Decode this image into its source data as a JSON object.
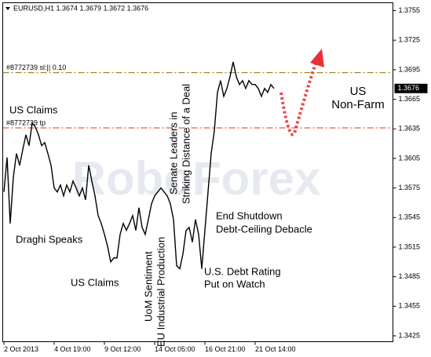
{
  "chart_data": {
    "type": "line",
    "title": "EURUSD,H1  1.3674 1.3679 1.3672 1.3676",
    "watermark": "RoboForex",
    "categories": [
      "2 Oct 2013",
      null,
      null,
      null,
      null,
      null,
      null,
      null,
      null,
      null,
      null,
      null,
      null,
      null,
      null,
      null,
      "4 Oct 19:00",
      null,
      null,
      null,
      null,
      null,
      null,
      null,
      null,
      null,
      null,
      null,
      null,
      null,
      null,
      null,
      "9 Oct 12:00",
      null,
      null,
      null,
      null,
      null,
      null,
      null,
      null,
      null,
      null,
      null,
      null,
      null,
      null,
      null,
      "14 Oct 05:00",
      null,
      null,
      null,
      null,
      null,
      null,
      null,
      null,
      null,
      null,
      null,
      null,
      null,
      null,
      null,
      "16 Oct 21:00",
      null,
      null,
      null,
      null,
      null,
      null,
      null,
      null,
      null,
      null,
      null,
      null,
      null,
      null,
      null,
      "21 Oct 14:00",
      null,
      null,
      null,
      null,
      null,
      null
    ],
    "series": [
      {
        "name": "EURUSD,H1",
        "color": "#000000",
        "values": [
          1.3571,
          1.3606,
          1.3539,
          1.3586,
          1.361,
          1.3598,
          1.3614,
          1.3629,
          1.3618,
          1.3641,
          1.3637,
          1.3629,
          1.3618,
          1.3621,
          1.361,
          1.3598,
          1.3575,
          1.3571,
          1.3578,
          1.3567,
          1.3578,
          1.3571,
          1.3582,
          1.3575,
          1.3567,
          1.3575,
          1.3563,
          1.3598,
          1.3582,
          1.3567,
          1.3547,
          1.3539,
          1.3528,
          1.3516,
          1.35,
          1.3504,
          1.3504,
          1.3528,
          1.3539,
          1.3532,
          1.3539,
          1.3547,
          1.3532,
          1.3555,
          1.3535,
          1.3528,
          1.3543,
          1.3559,
          1.3567,
          1.3571,
          1.3575,
          1.3571,
          1.3567,
          1.3559,
          1.3543,
          1.3496,
          1.3493,
          1.3508,
          1.3532,
          1.3535,
          1.352,
          1.3543,
          1.3528,
          1.3493,
          1.3532,
          1.3571,
          1.361,
          1.3633,
          1.3672,
          1.3684,
          1.3668,
          1.3676,
          1.3688,
          1.3703,
          1.3688,
          1.368,
          1.3684,
          1.3676,
          1.3684,
          1.368,
          1.368,
          1.3676,
          1.3668,
          1.3676,
          1.3672,
          1.368,
          1.3676
        ]
      }
    ],
    "ylim": [
      1.3419,
      1.3763
    ],
    "yticks": [
      1.3755,
      1.3725,
      1.3695,
      1.3665,
      1.3635,
      1.3605,
      1.3575,
      1.3545,
      1.3515,
      1.3485,
      1.3455,
      1.3425
    ],
    "last_price": 1.3676,
    "levels": [
      {
        "label": "#8772739 sl:|| 0.10",
        "value": 1.3692,
        "color": "#8b7300"
      },
      {
        "label": "#8772739 tp",
        "value": 1.3636,
        "color": "#e0301e"
      }
    ],
    "annotations": [
      "US Claims",
      "Draghi Speaks",
      "US Claims",
      "UoM Sentiment",
      "EU Industrial Production",
      "Senate Leaders in",
      "Striking Distance of a Deal",
      "End Shutdown",
      "Debt-Ceiling Debacle",
      "U.S. Debt Rating",
      "Put on Watch",
      "US",
      "Non-Farm"
    ]
  }
}
